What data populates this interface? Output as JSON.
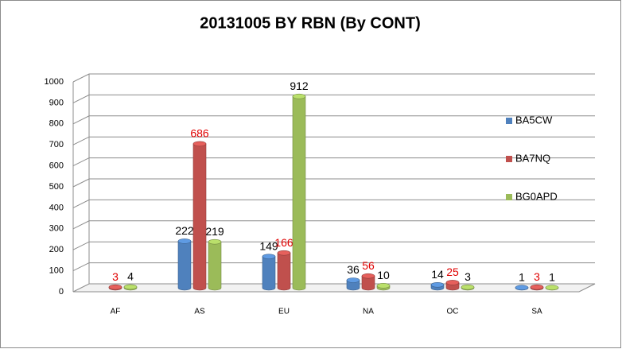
{
  "chart_data": {
    "type": "bar3d",
    "title": "20131005 BY RBN (By CONT)",
    "categories": [
      "AF",
      "AS",
      "EU",
      "NA",
      "OC",
      "SA"
    ],
    "series": [
      {
        "name": "BA5CW",
        "color": "#4f81bd",
        "label_color": "#000000",
        "values": [
          null,
          222,
          149,
          36,
          14,
          1
        ]
      },
      {
        "name": "BA7NQ",
        "color": "#c0504d",
        "label_color": "#e00000",
        "values": [
          3,
          686,
          166,
          56,
          25,
          3
        ]
      },
      {
        "name": "BG0APD",
        "color": "#9bbb59",
        "label_color": "#000000",
        "values": [
          4,
          219,
          912,
          10,
          3,
          1
        ]
      }
    ],
    "ylim": [
      0,
      1000
    ],
    "yticks": [
      0,
      100,
      200,
      300,
      400,
      500,
      600,
      700,
      800,
      900,
      1000
    ],
    "grid": true,
    "legend": "right"
  }
}
